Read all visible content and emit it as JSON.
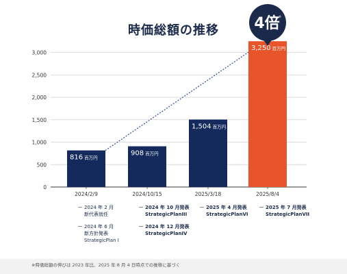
{
  "title": "時価総額の推移",
  "badge": {
    "text": "4倍",
    "mark": "※",
    "color": "#1b2a4a"
  },
  "chart_data": {
    "type": "bar",
    "categories": [
      "2024/2/9",
      "2024/10/15",
      "2025/3/18",
      "2025/8/4"
    ],
    "values": [
      816,
      908,
      1504,
      3250
    ],
    "value_labels": [
      "816",
      "908",
      "1,504",
      "3,250"
    ],
    "unit": "百万円",
    "ylim": [
      0,
      3100
    ],
    "yticks": [
      0,
      500,
      1000,
      1500,
      2000,
      2500,
      3000
    ],
    "ytick_labels": [
      "0",
      "500",
      "1,000",
      "1,500",
      "2,000",
      "2,500",
      "3,000"
    ],
    "grid": true,
    "colors": {
      "bar": "#142a5c",
      "highlight": "#e9542a",
      "trend": "#2a4a9a"
    }
  },
  "events": [
    {
      "items": [
        {
          "lines": [
            "2024 年 2 月",
            "新代表就任"
          ],
          "bold": false
        },
        {
          "lines": [
            "2024 年 6 月",
            "新方針発表",
            "StrategicPlan I"
          ],
          "bold": false
        }
      ]
    },
    {
      "items": [
        {
          "lines": [
            "2024 年 10 月発表",
            "StrategicPlanIII"
          ],
          "bold": true
        },
        {
          "lines": [
            "2024 年 12 月発表",
            "StrategicPlanIV"
          ],
          "bold": true
        }
      ]
    },
    {
      "items": [
        {
          "lines": [
            "2025 年 4 月発表",
            "StrategicPlanVI"
          ],
          "bold": true
        }
      ]
    },
    {
      "items": [
        {
          "lines": [
            "2025 年 7 月発表",
            "StrategicPlanVII"
          ],
          "bold": true
        }
      ]
    }
  ],
  "footnote": "※時価総額の伸びは 2023 年比、2025 年 8 月 4 日時点での推移に基づく"
}
